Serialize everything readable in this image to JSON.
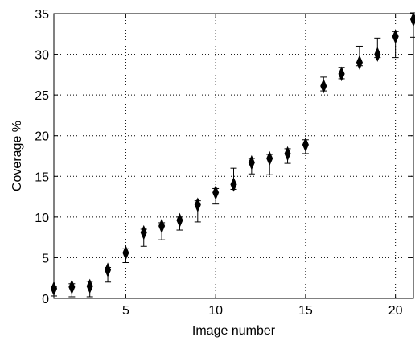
{
  "chart_data": {
    "type": "scatter",
    "title": "",
    "xlabel": "Image number",
    "ylabel": "Coverage %",
    "xlim": [
      1,
      21
    ],
    "ylim": [
      0,
      35
    ],
    "xticks": [
      5,
      10,
      15,
      20
    ],
    "yticks": [
      0,
      5,
      10,
      15,
      20,
      25,
      30,
      35
    ],
    "grid": true,
    "grid_style": "dotted",
    "marker_color": "#000000",
    "series": [
      {
        "x": [
          1,
          2,
          3,
          4,
          5,
          6,
          7,
          8,
          9,
          10,
          11,
          12,
          13,
          14,
          15,
          16,
          17,
          18,
          19,
          20,
          21
        ],
        "values": [
          1.2,
          1.4,
          1.5,
          3.5,
          5.6,
          8.1,
          8.9,
          9.6,
          11.5,
          13.0,
          14.0,
          16.7,
          17.2,
          17.8,
          18.9,
          26.1,
          27.6,
          29.0,
          30.0,
          32.2,
          34.3
        ],
        "err_low": [
          0.9,
          1.2,
          1.3,
          1.5,
          1.2,
          1.7,
          1.7,
          1.2,
          2.1,
          1.4,
          0.6,
          1.4,
          2.0,
          1.2,
          1.1,
          0.6,
          0.6,
          0.4,
          0.4,
          2.6,
          2.2
        ],
        "err_high": [
          0.2,
          0.4,
          0.6,
          0.3,
          0.5,
          0.4,
          0.4,
          0.4,
          0.5,
          0.5,
          2.0,
          0.5,
          0.5,
          0.6,
          0.6,
          1.1,
          0.8,
          2.0,
          2.0,
          0.6,
          0.8
        ]
      }
    ]
  }
}
